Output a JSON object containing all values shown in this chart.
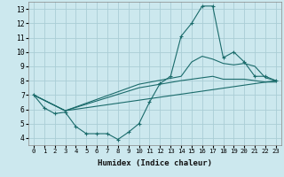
{
  "xlabel": "Humidex (Indice chaleur)",
  "bg_color": "#cce8ee",
  "grid_color": "#aacdd6",
  "line_color": "#1a6b6b",
  "xlim": [
    -0.5,
    23.5
  ],
  "ylim": [
    3.5,
    13.5
  ],
  "xticks": [
    0,
    1,
    2,
    3,
    4,
    5,
    6,
    7,
    8,
    9,
    10,
    11,
    12,
    13,
    14,
    15,
    16,
    17,
    18,
    19,
    20,
    21,
    22,
    23
  ],
  "yticks": [
    4,
    5,
    6,
    7,
    8,
    9,
    10,
    11,
    12,
    13
  ],
  "line1_x": [
    0,
    1,
    2,
    3,
    4,
    5,
    6,
    7,
    8,
    9,
    10,
    11,
    12,
    13,
    14,
    15,
    16,
    17,
    18,
    19,
    20,
    21,
    22,
    23
  ],
  "line1_y": [
    7.0,
    6.1,
    5.7,
    5.8,
    4.8,
    4.3,
    4.3,
    4.3,
    3.9,
    4.4,
    5.0,
    6.5,
    7.8,
    8.3,
    11.1,
    12.0,
    13.2,
    13.2,
    9.6,
    10.0,
    9.3,
    8.3,
    8.3,
    8.0
  ],
  "line2_x": [
    0,
    3,
    10,
    14,
    15,
    16,
    17,
    18,
    19,
    20,
    21,
    22,
    23
  ],
  "line2_y": [
    7.0,
    5.9,
    7.75,
    8.3,
    9.3,
    9.7,
    9.5,
    9.2,
    9.1,
    9.2,
    9.0,
    8.2,
    8.0
  ],
  "line3_x": [
    0,
    3,
    10,
    14,
    15,
    16,
    17,
    18,
    19,
    20,
    21,
    22,
    23
  ],
  "line3_y": [
    7.0,
    5.9,
    7.5,
    8.0,
    8.1,
    8.2,
    8.3,
    8.1,
    8.1,
    8.1,
    8.0,
    7.9,
    7.9
  ],
  "line4_x": [
    0,
    3,
    23
  ],
  "line4_y": [
    7.0,
    5.9,
    8.0
  ]
}
